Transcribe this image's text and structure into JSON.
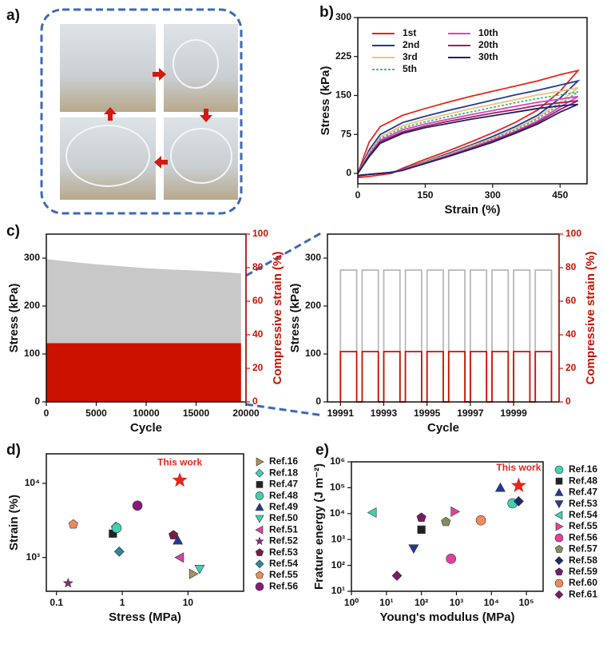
{
  "photo_panel": {
    "label": "a)"
  },
  "chart_data": [
    {
      "type": "line",
      "label": "b)",
      "x_label": "Strain (%)",
      "y_label": "Stress (kPa)",
      "x": [
        0,
        25,
        50,
        100,
        150,
        200,
        250,
        300,
        350,
        400,
        450,
        490,
        450,
        400,
        350,
        300,
        250,
        200,
        150,
        100,
        75,
        50,
        25,
        0
      ],
      "xlim": [
        0,
        510
      ],
      "xticks": [
        0,
        150,
        300,
        450
      ],
      "ylim": [
        -20,
        300
      ],
      "yticks": [
        0,
        75,
        150,
        225,
        300
      ],
      "legend": "upper left",
      "series": [
        {
          "name": "1st",
          "color": "#e8251b",
          "values": [
            0,
            60,
            90,
            112,
            125,
            137,
            148,
            158,
            168,
            178,
            190,
            198,
            158,
            122,
            98,
            78,
            60,
            43,
            27,
            10,
            0,
            -3,
            -6,
            -8
          ]
        },
        {
          "name": "2nd",
          "color": "#1f3a9a",
          "values": [
            0,
            45,
            75,
            98,
            110,
            121,
            131,
            141,
            151,
            160,
            170,
            178,
            145,
            112,
            90,
            71,
            54,
            38,
            23,
            8,
            2,
            0,
            -2,
            -5
          ]
        },
        {
          "name": "3rd",
          "color": "#f2c07a",
          "values": [
            0,
            40,
            70,
            92,
            104,
            114,
            124,
            133,
            142,
            151,
            158,
            165,
            138,
            108,
            86,
            68,
            52,
            36,
            22,
            7,
            2,
            0,
            -2,
            -4
          ]
        },
        {
          "name": "5th",
          "color": "#3dbf7a",
          "dash": true,
          "values": [
            0,
            38,
            67,
            88,
            99,
            109,
            118,
            127,
            136,
            144,
            151,
            157,
            133,
            105,
            84,
            66,
            50,
            35,
            21,
            7,
            2,
            0,
            -2,
            -4
          ]
        },
        {
          "name": "10th",
          "color": "#e040c0",
          "values": [
            0,
            36,
            64,
            84,
            95,
            104,
            113,
            121,
            129,
            137,
            143,
            148,
            128,
            101,
            81,
            64,
            49,
            34,
            20,
            7,
            2,
            0,
            -2,
            -4
          ]
        },
        {
          "name": "20th",
          "color": "#9a1f5a",
          "values": [
            0,
            34,
            61,
            80,
            91,
            100,
            108,
            116,
            123,
            131,
            136,
            140,
            123,
            98,
            79,
            62,
            47,
            33,
            20,
            6,
            2,
            0,
            -2,
            -4
          ]
        },
        {
          "name": "30th",
          "color": "#1c1f6e",
          "values": [
            0,
            32,
            58,
            77,
            88,
            96,
            104,
            111,
            118,
            125,
            130,
            133,
            118,
            95,
            77,
            60,
            46,
            32,
            19,
            6,
            2,
            0,
            -2,
            -4
          ]
        }
      ]
    },
    {
      "type": "area",
      "label": "c)",
      "x_label": "Cycle",
      "y_label": "Stress (kPa)",
      "y2_label": "Compressive strain (%)",
      "y2_color": "#cc1100",
      "x": [
        0,
        2500,
        5000,
        7500,
        10000,
        12500,
        15000,
        17500,
        19500
      ],
      "xlim": [
        0,
        20000
      ],
      "xticks": [
        0,
        5000,
        10000,
        15000,
        20000
      ],
      "ylim": [
        0,
        350
      ],
      "yticks": [
        0,
        100,
        200,
        300
      ],
      "y2lim": [
        0,
        100
      ],
      "y2ticks": [
        0,
        20,
        40,
        60,
        80,
        100
      ],
      "series": [
        {
          "color": "#c8c8c8",
          "values": [
            298,
            292,
            287,
            283,
            279,
            276,
            274,
            271,
            268
          ]
        },
        {
          "color": "#cc1100",
          "axis": "y2",
          "values": [
            35,
            35,
            35,
            35,
            35,
            35,
            35,
            35,
            35
          ]
        }
      ]
    },
    {
      "type": "line",
      "x_label": "Cycle",
      "y_label": "Stress (kPa)",
      "y2_label": "Compressive strain (%)",
      "y2_color": "#cc1100",
      "x": [
        19991,
        19991,
        19991.75,
        19991.75,
        19992,
        19992,
        19992.75,
        19992.75,
        19993,
        19993,
        19993.75,
        19993.75,
        19994,
        19994,
        19994.75,
        19994.75,
        19995,
        19995,
        19995.75,
        19995.75,
        19996,
        19996,
        19996.75,
        19996.75,
        19997,
        19997,
        19997.75,
        19997.75,
        19998,
        19998,
        19998.75,
        19998.75,
        19999,
        19999,
        19999.75,
        19999.75,
        20000,
        20000,
        20000.75,
        20000.75
      ],
      "xlim": [
        19990.4,
        20001.1
      ],
      "xticks": [
        19991,
        19993,
        19995,
        19997,
        19999
      ],
      "ylim": [
        0,
        350
      ],
      "yticks": [
        0,
        100,
        200,
        300
      ],
      "y2lim": [
        0,
        100
      ],
      "y2ticks": [
        0,
        20,
        40,
        60,
        80,
        100
      ],
      "series": [
        {
          "color": "#b8b8b8",
          "values": [
            0,
            275,
            275,
            0,
            0,
            275,
            275,
            0,
            0,
            275,
            275,
            0,
            0,
            275,
            275,
            0,
            0,
            275,
            275,
            0,
            0,
            275,
            275,
            0,
            0,
            275,
            275,
            0,
            0,
            275,
            275,
            0,
            0,
            275,
            275,
            0,
            0,
            275,
            275,
            0
          ]
        },
        {
          "color": "#cc1100",
          "axis": "y2",
          "values": [
            0,
            30,
            30,
            0,
            0,
            30,
            30,
            0,
            0,
            30,
            30,
            0,
            0,
            30,
            30,
            0,
            0,
            30,
            30,
            0,
            0,
            30,
            30,
            0,
            0,
            30,
            30,
            0,
            0,
            30,
            30,
            0,
            0,
            30,
            30,
            0,
            0,
            30,
            30,
            0
          ]
        }
      ]
    },
    {
      "type": "scatter",
      "label": "d)",
      "x_label": "Stress (MPa)",
      "y_label": "Strain (%)",
      "xlog": true,
      "ylog": true,
      "xlim": [
        0.07,
        70
      ],
      "xticks": [
        0.1,
        1,
        10
      ],
      "ylim": [
        350,
        25000
      ],
      "yticks": [
        {
          "value": 1000,
          "label": "10³"
        },
        {
          "value": 10000,
          "label": "10⁴"
        }
      ],
      "highlight": {
        "label": "This work",
        "x": 7.5,
        "y": 11000,
        "color": "#e8251b"
      },
      "series": [
        {
          "name": "Ref.16",
          "color": "#a89060",
          "marker": "triangle-right",
          "x": [
            12
          ],
          "values": [
            600
          ]
        },
        {
          "name": "Ref.18",
          "color": "#40d0b0",
          "marker": "diamond",
          "x": [
            0.8
          ],
          "values": [
            2600
          ]
        },
        {
          "name": "Ref.47",
          "color": "#222222",
          "marker": "square",
          "x": [
            0.72
          ],
          "values": [
            2100
          ]
        },
        {
          "name": "Ref.48",
          "color": "#40d0b0",
          "marker": "circle",
          "x": [
            0.82
          ],
          "values": [
            2500
          ]
        },
        {
          "name": "Ref.49",
          "color": "#1f3a9a",
          "marker": "triangle-up",
          "x": [
            7
          ],
          "values": [
            1700
          ]
        },
        {
          "name": "Ref.50",
          "color": "#40d0b0",
          "marker": "triangle-down",
          "x": [
            15
          ],
          "values": [
            700
          ]
        },
        {
          "name": "Ref.51",
          "color": "#e040a0",
          "marker": "triangle-left",
          "x": [
            7.5
          ],
          "values": [
            1000
          ]
        },
        {
          "name": "Ref.52",
          "color": "#8a2a7a",
          "marker": "star",
          "x": [
            0.15
          ],
          "values": [
            450
          ]
        },
        {
          "name": "Ref.53",
          "color": "#7a1a4a",
          "marker": "pentagon",
          "x": [
            6
          ],
          "values": [
            2000
          ]
        },
        {
          "name": "Ref.54",
          "color": "#2a8a9a",
          "marker": "diamond",
          "x": [
            0.9
          ],
          "values": [
            1200
          ]
        },
        {
          "name": "Ref.55",
          "color": "#f08a5a",
          "marker": "pentagon",
          "x": [
            0.18
          ],
          "values": [
            2800
          ]
        },
        {
          "name": "Ref.56",
          "color": "#8a1a7a",
          "marker": "circle",
          "x": [
            1.7
          ],
          "values": [
            5000
          ]
        }
      ]
    },
    {
      "type": "scatter",
      "label": "e)",
      "x_label": "Young's modulus (MPa)",
      "y_label": "Frature energy (J m⁻²)",
      "xlog": true,
      "ylog": true,
      "xlim": [
        1,
        300000
      ],
      "xticks": [
        {
          "value": 1,
          "label": "10⁰"
        },
        {
          "value": 10,
          "label": "10¹"
        },
        {
          "value": 100,
          "label": "10²"
        },
        {
          "value": 1000,
          "label": "10³"
        },
        {
          "value": 10000,
          "label": "10⁴"
        },
        {
          "value": 100000,
          "label": "10⁵"
        }
      ],
      "ylim": [
        10,
        1000000
      ],
      "yticks": [
        {
          "value": 10,
          "label": "10¹"
        },
        {
          "value": 100,
          "label": "10²"
        },
        {
          "value": 1000,
          "label": "10³"
        },
        {
          "value": 10000,
          "label": "10⁴"
        },
        {
          "value": 100000,
          "label": "10⁵"
        },
        {
          "value": 1000000,
          "label": "10⁶"
        }
      ],
      "highlight": {
        "label": "This work",
        "x": 60000,
        "y": 120000,
        "color": "#e8251b"
      },
      "series": [
        {
          "name": "Ref.16",
          "color": "#40d0b0",
          "marker": "circle",
          "x": [
            40000
          ],
          "values": [
            25000
          ]
        },
        {
          "name": "Ref.48",
          "color": "#222222",
          "marker": "square",
          "x": [
            100
          ],
          "values": [
            2400
          ]
        },
        {
          "name": "Ref.47",
          "color": "#1f3a9a",
          "marker": "triangle-up",
          "x": [
            18000
          ],
          "values": [
            100000
          ]
        },
        {
          "name": "Ref.53",
          "color": "#1f3a9a",
          "marker": "triangle-down",
          "x": [
            60
          ],
          "values": [
            450
          ]
        },
        {
          "name": "Ref.54",
          "color": "#40d0b0",
          "marker": "triangle-left",
          "x": [
            4
          ],
          "values": [
            11000
          ]
        },
        {
          "name": "Ref.55",
          "color": "#e040a0",
          "marker": "triangle-right",
          "x": [
            900
          ],
          "values": [
            12000
          ]
        },
        {
          "name": "Ref.56",
          "color": "#e040a0",
          "marker": "circle",
          "x": [
            700
          ],
          "values": [
            180
          ]
        },
        {
          "name": "Ref.57",
          "color": "#8a8a5a",
          "marker": "pentagon",
          "x": [
            500
          ],
          "values": [
            4800
          ]
        },
        {
          "name": "Ref.58",
          "color": "#1a2a6a",
          "marker": "diamond",
          "x": [
            60000
          ],
          "values": [
            30000
          ]
        },
        {
          "name": "Ref.59",
          "color": "#7a1a6a",
          "marker": "pentagon",
          "x": [
            100
          ],
          "values": [
            7000
          ]
        },
        {
          "name": "Ref.60",
          "color": "#f08a5a",
          "marker": "circle",
          "x": [
            5000
          ],
          "values": [
            5500
          ]
        },
        {
          "name": "Ref.61",
          "color": "#7a1a6a",
          "marker": "diamond",
          "x": [
            20
          ],
          "values": [
            40
          ]
        }
      ]
    }
  ]
}
